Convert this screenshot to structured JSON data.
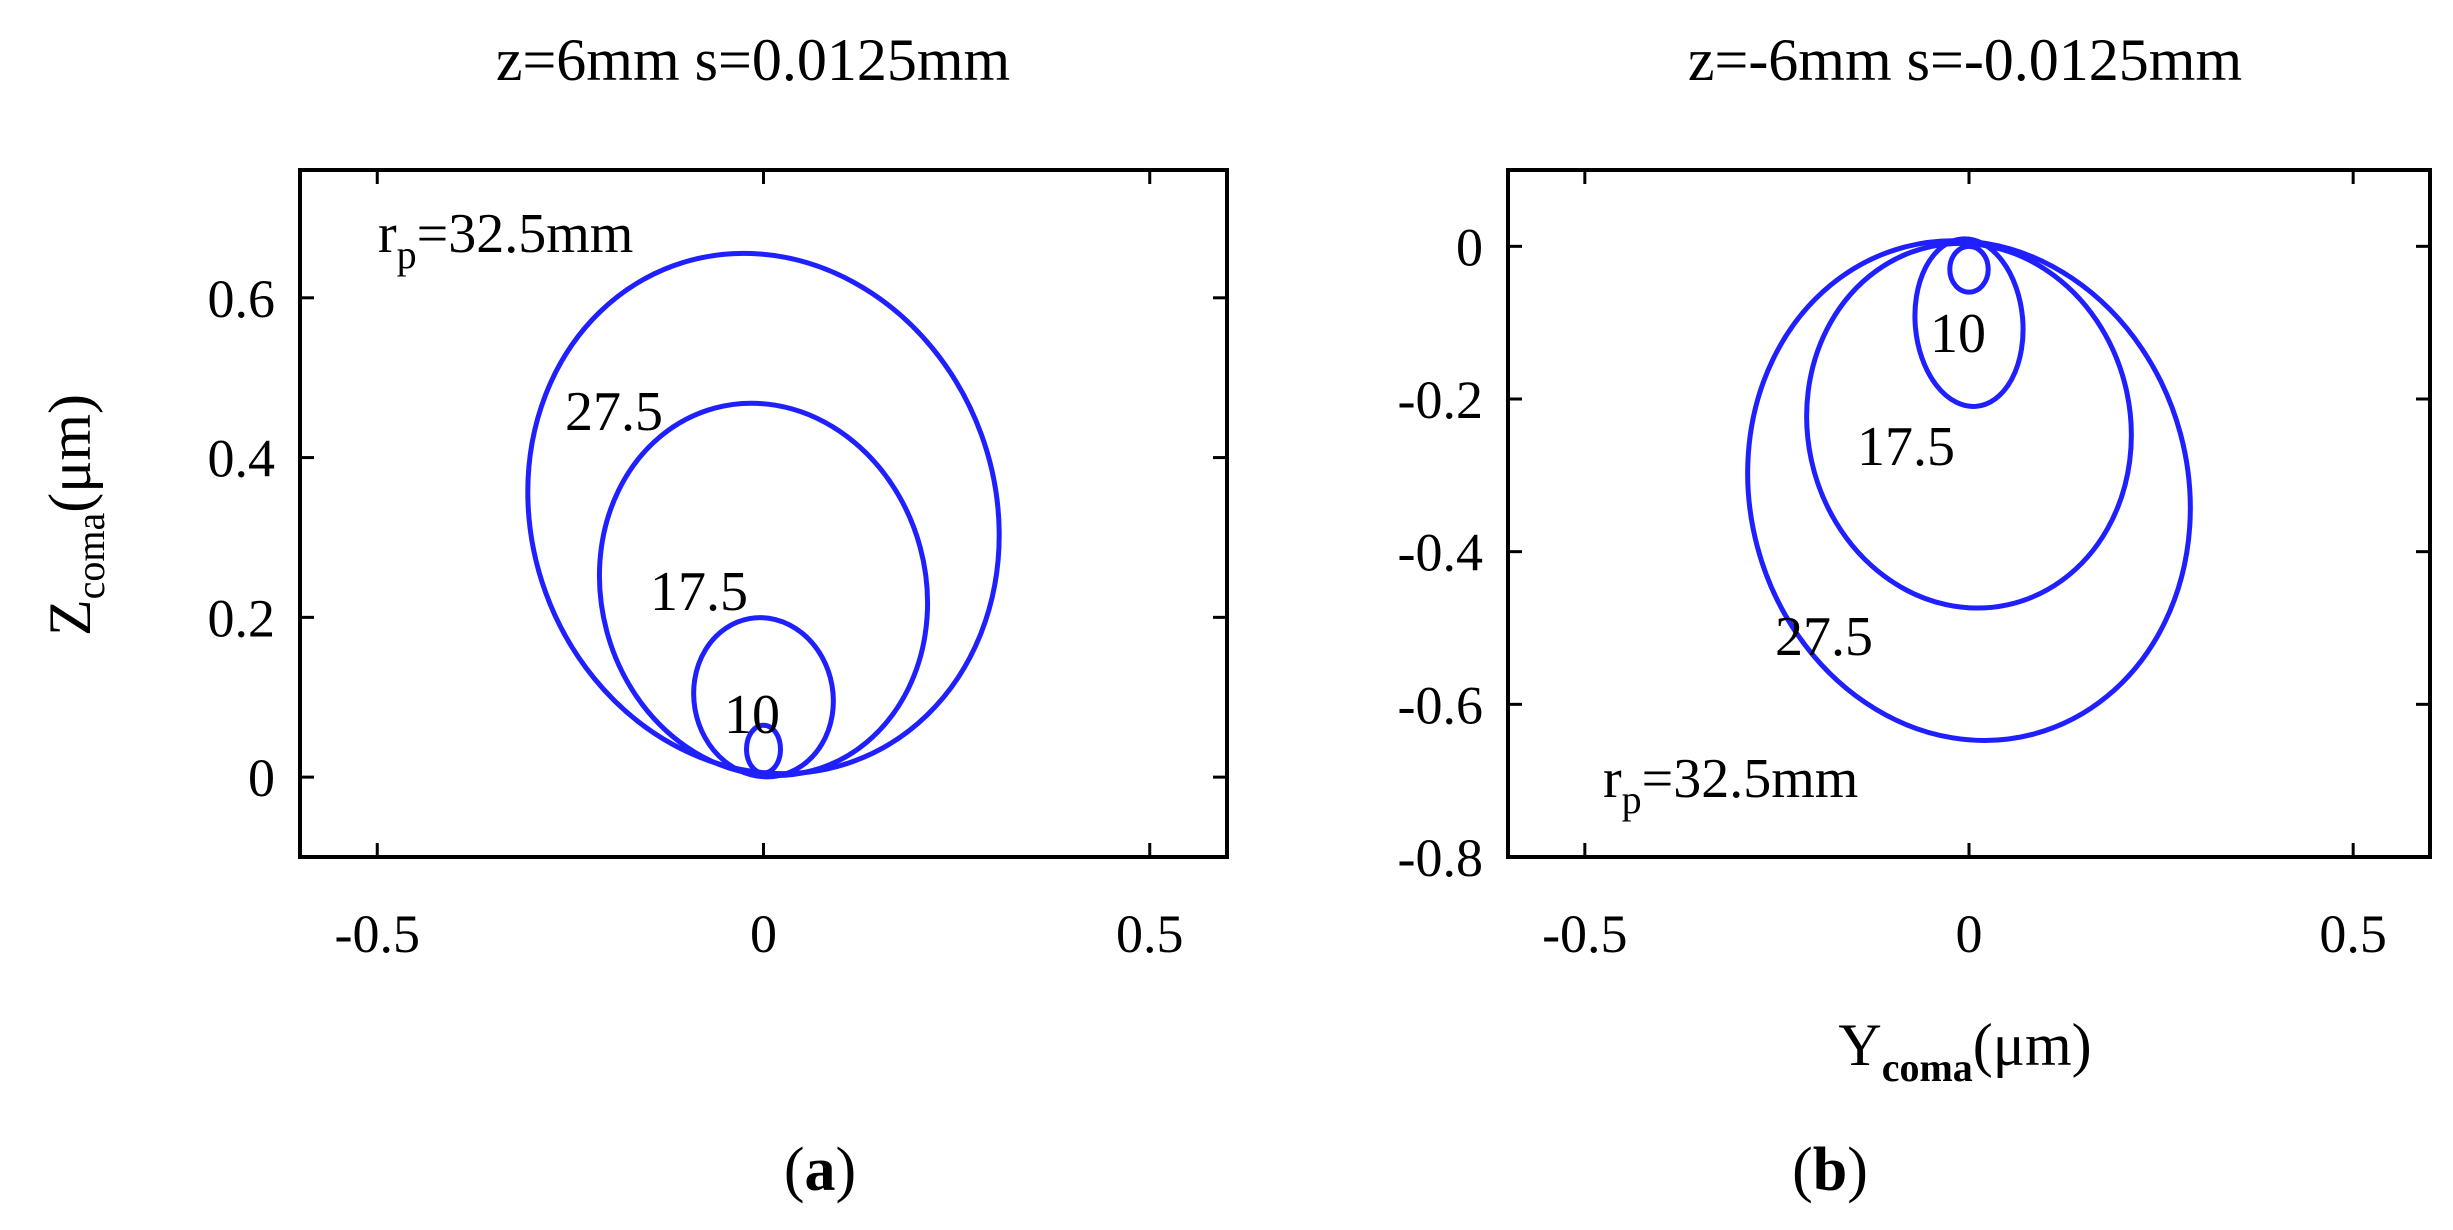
{
  "colors": {
    "curve": "#1f1fff",
    "axis": "#000000"
  },
  "chart_data": [
    {
      "type": "line",
      "title": "z=6mm s=0.0125mm",
      "ylabel": {
        "main": "Z",
        "sub": "coma",
        "unit": "(μm)"
      },
      "xlabel": null,
      "xlim": [
        -0.6,
        0.6
      ],
      "ylim": [
        -0.1,
        0.76
      ],
      "xticks": [
        -0.5,
        0,
        0.5
      ],
      "yticks": [
        0,
        0.2,
        0.4,
        0.6
      ],
      "xtick_labels": [
        "-0.5",
        "0",
        "0.5"
      ],
      "ytick_labels": [
        "0",
        "0.2",
        "0.4",
        "0.6"
      ],
      "grid": false,
      "panel_label": [
        "(",
        "a",
        ")"
      ],
      "series": [
        {
          "name": "r_p=32.5mm",
          "label_r": "r",
          "label_sub": "p",
          "label_rest": "=32.5mm",
          "cx": 0.0,
          "cy": 0.33,
          "rx": 0.3,
          "ry": 0.33,
          "tilt_deg": -20
        },
        {
          "name": "27.5",
          "cx": 0.0,
          "cy": 0.235,
          "rx": 0.21,
          "ry": 0.235,
          "tilt_deg": -15
        },
        {
          "name": "17.5",
          "cx": 0.0,
          "cy": 0.1,
          "rx": 0.09,
          "ry": 0.1,
          "tilt_deg": -10
        },
        {
          "name": "10",
          "cx": 0.0,
          "cy": 0.035,
          "rx": 0.022,
          "ry": 0.03,
          "tilt_deg": 0
        }
      ]
    },
    {
      "type": "line",
      "title": "z=-6mm s=-0.0125mm",
      "ylabel": null,
      "xlabel": {
        "main": "Y",
        "sub": "coma",
        "unit": "(μm)"
      },
      "xlim": [
        -0.6,
        0.6
      ],
      "ylim": [
        -0.8,
        0.1
      ],
      "xticks": [
        -0.5,
        0,
        0.5
      ],
      "yticks": [
        0,
        -0.2,
        -0.4,
        -0.6,
        -0.8
      ],
      "xtick_labels": [
        "-0.5",
        "0",
        "0.5"
      ],
      "ytick_labels": [
        "0",
        "-0.2",
        "-0.4",
        "-0.6",
        "-0.8"
      ],
      "grid": false,
      "panel_label": [
        "(",
        "b",
        ")"
      ],
      "series": [
        {
          "name": "r_p=32.5mm",
          "label_r": "r",
          "label_sub": "p",
          "label_rest": "=32.5mm",
          "cx": 0.0,
          "cy": -0.32,
          "rx": 0.285,
          "ry": 0.33,
          "tilt_deg": -15
        },
        {
          "name": "27.5",
          "cx": 0.0,
          "cy": -0.235,
          "rx": 0.21,
          "ry": 0.24,
          "tilt_deg": -12
        },
        {
          "name": "17.5",
          "cx": 0.0,
          "cy": -0.1,
          "rx": 0.07,
          "ry": 0.11,
          "tilt_deg": -5
        },
        {
          "name": "10",
          "cx": 0.0,
          "cy": -0.03,
          "rx": 0.025,
          "ry": 0.03,
          "tilt_deg": 0
        }
      ]
    }
  ]
}
